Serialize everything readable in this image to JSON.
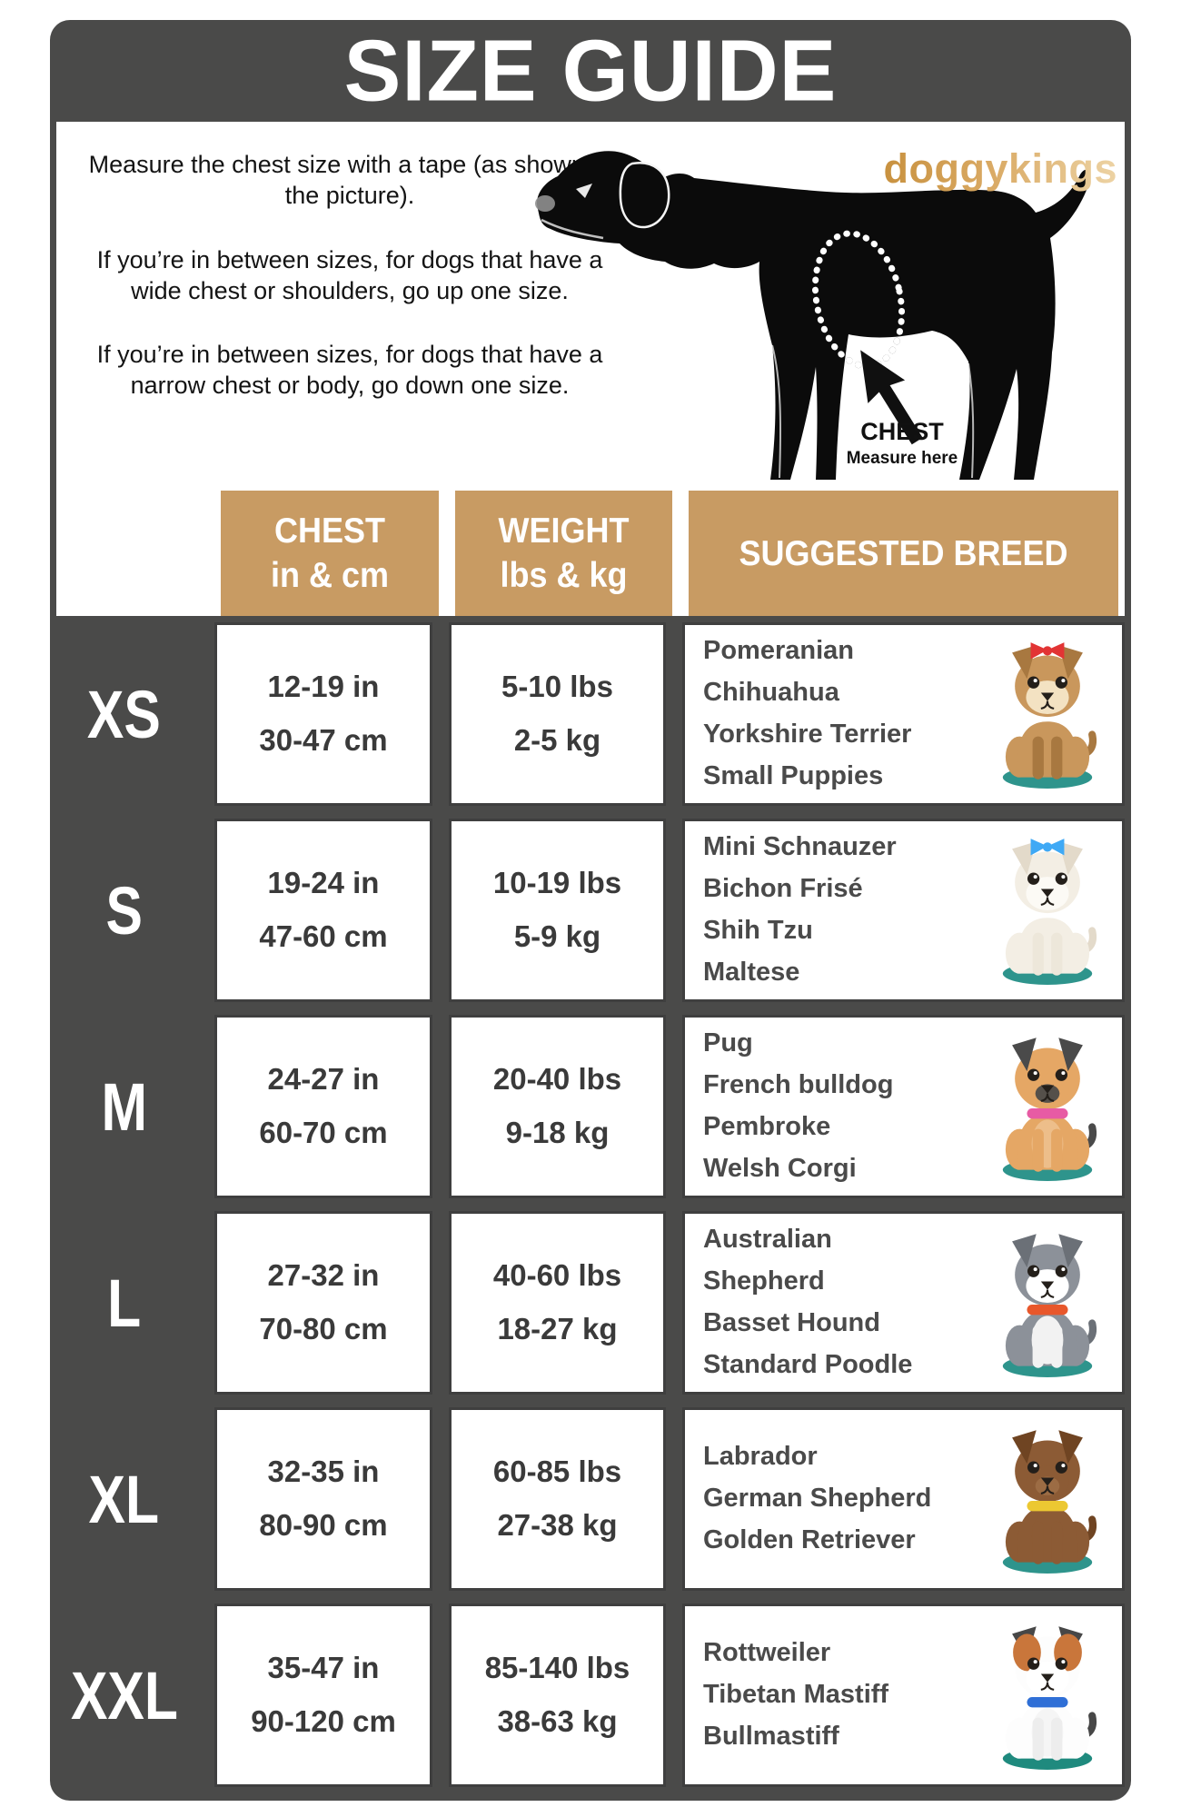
{
  "title": "SIZE GUIDE",
  "brand": "doggykings",
  "instructions": {
    "p1": "Measure the chest size with a tape (as shown in the picture).",
    "p2": "If you’re in between sizes, for dogs that have a wide chest or shoulders, go up one size.",
    "p3": "If you’re in between sizes, for dogs that have a narrow chest or body, go down one size."
  },
  "diagram": {
    "chest_label": "CHEST",
    "measure_label": "Measure here"
  },
  "colors": {
    "panel_gray": "#4A4A49",
    "header_tan": "#C89B63",
    "cell_border": "#3F3F3F",
    "measure_text": "#3A3A3A",
    "breed_text": "#4A4A4A",
    "logo_gradient_start": "#C8913F",
    "logo_gradient_end": "#EDD3A4"
  },
  "table": {
    "headers": [
      {
        "line1": "CHEST",
        "line2": "in & cm"
      },
      {
        "line1": "WEIGHT",
        "line2": "lbs & kg"
      },
      {
        "line1": "SUGGESTED BREED",
        "line2": ""
      }
    ],
    "rows": [
      {
        "size": "XS",
        "chest_in": "12-19 in",
        "chest_cm": "30-47 cm",
        "weight_lbs": "5-10 lbs",
        "weight_kg": "2-5 kg",
        "breeds": [
          "Pomeranian",
          "Chihuahua",
          "Yorkshire Terrier",
          "Small Puppies"
        ],
        "dog": {
          "icon": "yorkshire-terrier-illustration",
          "accessory": "bow",
          "accessory_color": "#E23434",
          "body": "#C9975C",
          "ear": "#A87840",
          "face": "#F3E2C2",
          "muzzle": "#F3E2C2",
          "chest": "#C9975C",
          "legs": "#A87840",
          "base": "#2E948C",
          "head_patch": ""
        }
      },
      {
        "size": "S",
        "chest_in": "19-24 in",
        "chest_cm": "47-60 cm",
        "weight_lbs": "10-19 lbs",
        "weight_kg": "5-9 kg",
        "breeds": [
          "Mini Schnauzer",
          "Bichon Frisé",
          "Shih Tzu",
          "Maltese"
        ],
        "dog": {
          "icon": "maltese-illustration",
          "accessory": "bow",
          "accessory_color": "#3FA9F5",
          "body": "#F3EEE4",
          "ear": "#E3DACA",
          "face": "#FCFAF5",
          "muzzle": "#FCFAF5",
          "chest": "#F3EEE4",
          "legs": "#EDE7DA",
          "base": "#2E948C",
          "head_patch": ""
        }
      },
      {
        "size": "M",
        "chest_in": "24-27 in",
        "chest_cm": "60-70 cm",
        "weight_lbs": "20-40 lbs",
        "weight_kg": "9-18 kg",
        "breeds": [
          "Pug",
          "French bulldog",
          "Pembroke",
          "Welsh Corgi"
        ],
        "dog": {
          "icon": "pug-illustration",
          "accessory": "collar",
          "accessory_color": "#E75BA4",
          "body": "#E5A765",
          "ear": "#4A4A4A",
          "face": "#E5A765",
          "muzzle": "#55504A",
          "chest": "#EDBE8A",
          "legs": "#E5A765",
          "base": "#2E948C",
          "head_patch": ""
        }
      },
      {
        "size": "L",
        "chest_in": "27-32 in",
        "chest_cm": "70-80 cm",
        "weight_lbs": "40-60 lbs",
        "weight_kg": "18-27 kg",
        "breeds": [
          "Australian",
          "Shepherd",
          "Basset Hound",
          "Standard Poodle"
        ],
        "dog": {
          "icon": "husky-illustration",
          "accessory": "collar",
          "accessory_color": "#E8572B",
          "body": "#8C9199",
          "ear": "#6B7077",
          "face": "#FFFFFF",
          "muzzle": "#FFFFFF",
          "chest": "#F2F2F2",
          "legs": "#F2F2F2",
          "base": "#2E948C",
          "head_patch": ""
        }
      },
      {
        "size": "XL",
        "chest_in": "32-35 in",
        "chest_cm": "80-90 cm",
        "weight_lbs": "60-85 lbs",
        "weight_kg": "27-38 kg",
        "breeds": [
          "Labrador",
          "German Shepherd",
          "Golden Retriever"
        ],
        "dog": {
          "icon": "labrador-illustration",
          "accessory": "collar",
          "accessory_color": "#ECC832",
          "body": "#8C5B35",
          "ear": "#6F4422",
          "face": "#8C5B35",
          "muzzle": "#9C6C44",
          "chest": "#8C5B35",
          "legs": "#8C5B35",
          "base": "#2E948C",
          "head_patch": ""
        }
      },
      {
        "size": "XXL",
        "chest_in": "35-47 in",
        "chest_cm": "90-120 cm",
        "weight_lbs": "85-140 lbs",
        "weight_kg": "38-63 kg",
        "breeds": [
          "Rottweiler",
          "Tibetan Mastiff",
          "Bullmastiff"
        ],
        "dog": {
          "icon": "saint-bernard-illustration",
          "accessory": "collar",
          "accessory_color": "#2F6FD6",
          "body": "#FDFDFD",
          "ear": "#474747",
          "face": "#FFFFFF",
          "muzzle": "#FFFFFF",
          "chest": "#F5F5F5",
          "legs": "#EDEDED",
          "base": "#1F8A7E",
          "head_patch": "#C9763B"
        }
      }
    ]
  }
}
